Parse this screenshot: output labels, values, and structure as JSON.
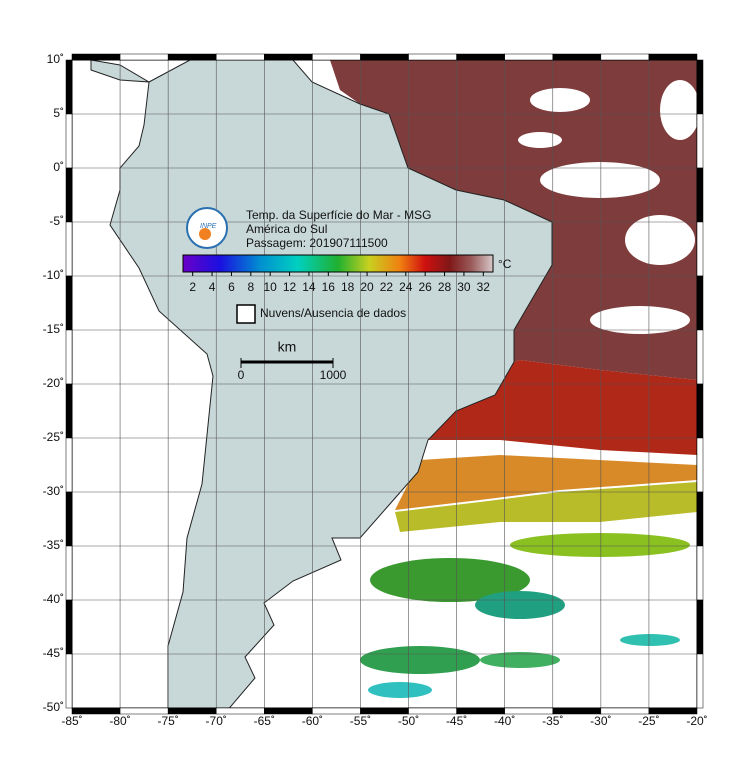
{
  "map": {
    "title": "Temp. da Superfície do Mar - MSG",
    "region": "América do Sul",
    "pass": "Passagem: 201907111500",
    "logo_text": "INPE",
    "colorbar": {
      "unit": "°C",
      "lim": [
        1,
        33
      ],
      "ticks": [
        2,
        4,
        6,
        8,
        10,
        12,
        14,
        16,
        18,
        20,
        22,
        24,
        26,
        28,
        30,
        32
      ]
    },
    "legend": {
      "clouds": "Nuvens/Ausencia de dados"
    },
    "scale_bar": {
      "unit": "km",
      "ticks": [
        0,
        1000
      ]
    },
    "xlim": [
      -85,
      -20
    ],
    "ylim": [
      -50,
      10
    ],
    "xticks": [
      {
        "value": -85,
        "label": "-85˚"
      },
      {
        "value": -80,
        "label": "-80˚"
      },
      {
        "value": -75,
        "label": "-75˚"
      },
      {
        "value": -70,
        "label": "-70˚"
      },
      {
        "value": -65,
        "label": "-65˚"
      },
      {
        "value": -60,
        "label": "-60˚"
      },
      {
        "value": -55,
        "label": "-55˚"
      },
      {
        "value": -50,
        "label": "-50˚"
      },
      {
        "value": -45,
        "label": "-45˚"
      },
      {
        "value": -40,
        "label": "-40˚"
      },
      {
        "value": -35,
        "label": "-35˚"
      },
      {
        "value": -30,
        "label": "-30˚"
      },
      {
        "value": -25,
        "label": "-25˚"
      },
      {
        "value": -20,
        "label": "-20˚"
      }
    ],
    "yticks": [
      {
        "value": 10,
        "label": "10˚"
      },
      {
        "value": 5,
        "label": "5˚"
      },
      {
        "value": 0,
        "label": "0˚"
      },
      {
        "value": -5,
        "label": "-5˚"
      },
      {
        "value": -10,
        "label": "-10˚"
      },
      {
        "value": -15,
        "label": "-15˚"
      },
      {
        "value": -20,
        "label": "-20˚"
      },
      {
        "value": -25,
        "label": "-25˚"
      },
      {
        "value": -30,
        "label": "-30˚"
      },
      {
        "value": -35,
        "label": "-35˚"
      },
      {
        "value": -40,
        "label": "-40˚"
      },
      {
        "value": -45,
        "label": "-45˚"
      },
      {
        "value": -50,
        "label": "-50˚"
      }
    ]
  }
}
